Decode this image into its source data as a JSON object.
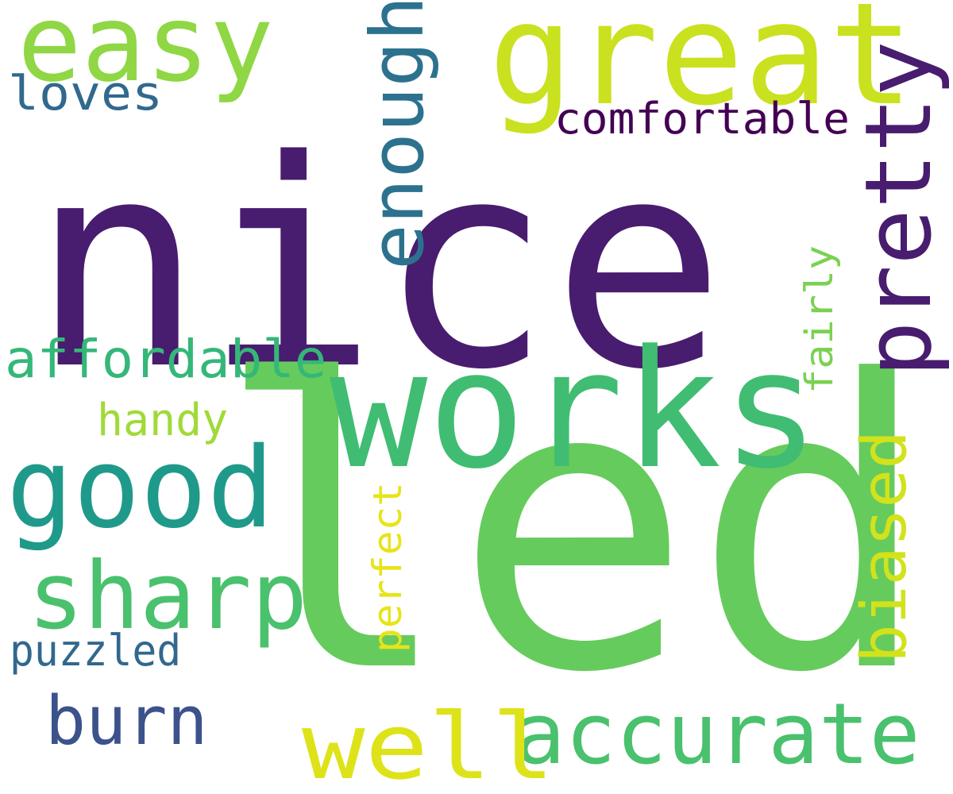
{
  "words": {
    "nice": {
      "text": "nice",
      "color": "#481c6e",
      "orientation": "horizontal"
    },
    "led": {
      "text": "led",
      "color": "#66cb5d",
      "orientation": "horizontal"
    },
    "works": {
      "text": "works",
      "color": "#40bd72",
      "orientation": "horizontal"
    },
    "great": {
      "text": "great",
      "color": "#cae11f",
      "orientation": "horizontal"
    },
    "easy": {
      "text": "easy",
      "color": "#8fd744",
      "orientation": "horizontal"
    },
    "good": {
      "text": "good",
      "color": "#1f9a8a",
      "orientation": "horizontal"
    },
    "sharp": {
      "text": "sharp",
      "color": "#4ac16d",
      "orientation": "horizontal"
    },
    "accurate": {
      "text": "accurate",
      "color": "#4ac16d",
      "orientation": "horizontal"
    },
    "well": {
      "text": "well",
      "color": "#dde318",
      "orientation": "horizontal"
    },
    "burn": {
      "text": "burn",
      "color": "#3b528b",
      "orientation": "horizontal"
    },
    "pretty": {
      "text": "pretty",
      "color": "#481c6e",
      "orientation": "vertical"
    },
    "enough": {
      "text": "enough",
      "color": "#2c728e",
      "orientation": "vertical"
    },
    "biased": {
      "text": "biased",
      "color": "#d2e21b",
      "orientation": "vertical"
    },
    "affordable": {
      "text": "affordable",
      "color": "#35b779",
      "orientation": "horizontal"
    },
    "comfortable": {
      "text": "comfortable",
      "color": "#440154",
      "orientation": "horizontal"
    },
    "loves": {
      "text": "loves",
      "color": "#31688e",
      "orientation": "horizontal"
    },
    "handy": {
      "text": "handy",
      "color": "#a0da39",
      "orientation": "horizontal"
    },
    "puzzled": {
      "text": "puzzled",
      "color": "#31688e",
      "orientation": "horizontal"
    },
    "perfect": {
      "text": "perfect",
      "color": "#e7e419",
      "orientation": "vertical"
    },
    "fairly": {
      "text": "fairly",
      "color": "#7ad151",
      "orientation": "vertical"
    }
  }
}
